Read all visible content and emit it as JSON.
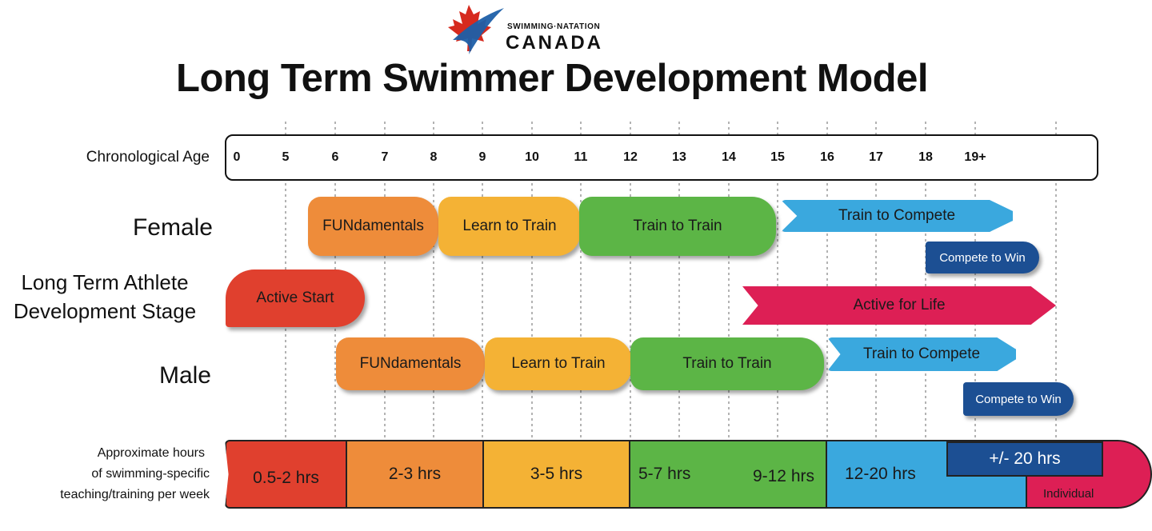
{
  "logo": {
    "line1": "SWIMMING·NATATION",
    "line2": "CANADA"
  },
  "title": "Long Term Swimmer Development Model",
  "labels": {
    "chronological_age": "Chronological Age",
    "female": "Female",
    "ltad_line1": "Long Term Athlete",
    "ltad_line2": "Development Stage",
    "male": "Male",
    "hours_line1": "Approximate hours",
    "hours_line2": "of swimming-specific",
    "hours_line3": "teaching/training per week"
  },
  "ages": [
    "0",
    "5",
    "6",
    "7",
    "8",
    "9",
    "10",
    "11",
    "12",
    "13",
    "14",
    "15",
    "16",
    "17",
    "18",
    "19+"
  ],
  "female": {
    "fundamentals": "FUNdamentals",
    "learn_to_train": "Learn to Train",
    "train_to_train": "Train to Train",
    "train_to_compete": "Train to Compete",
    "compete_to_win": "Compete to Win"
  },
  "general": {
    "active_start": "Active Start",
    "active_for_life": "Active for Life"
  },
  "male": {
    "fundamentals": "FUNdamentals",
    "learn_to_train": "Learn to Train",
    "train_to_train": "Train to Train",
    "train_to_compete": "Train to Compete",
    "compete_to_win": "Compete to Win"
  },
  "hours": {
    "h1": "0.5-2 hrs",
    "h2": "2-3 hrs",
    "h3": "3-5 hrs",
    "h4a": "5-7 hrs",
    "h4b": "9-12 hrs",
    "h5": "12-20 hrs",
    "h6": "+/- 20 hrs",
    "h7": "Individual"
  },
  "colors": {
    "orange": "#ee8c3a",
    "yellow": "#f4b235",
    "green": "#5cb546",
    "blue": "#3aa8de",
    "navy": "#1c4f93",
    "red": "#e0402e",
    "pink": "#dd1f55"
  }
}
